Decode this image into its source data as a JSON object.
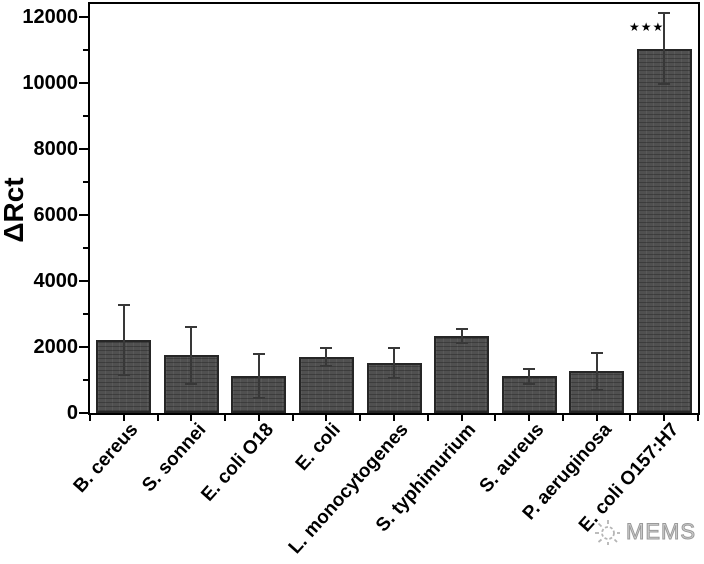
{
  "chart_data": {
    "type": "bar",
    "title": "",
    "xlabel": "",
    "ylabel": "ΔRct",
    "ylim": [
      0,
      12000
    ],
    "yticks_major": [
      0,
      2000,
      4000,
      6000,
      8000,
      10000,
      12000
    ],
    "yticks_minor": [
      1000,
      3000,
      5000,
      7000,
      9000,
      11000
    ],
    "grid": false,
    "legend": null,
    "bar_face_color": "#505050",
    "bar_edge_color": "#262626",
    "error_bar_color": "#383838",
    "categories": [
      "B. cereus",
      "S. sonnei",
      "E. coli O18",
      "E. coli",
      "L. monocytogenes",
      "S. typhimurium",
      "S. aureus",
      "P. aeruginosa",
      "E. coli O157:H7"
    ],
    "values": [
      2200,
      1750,
      1120,
      1700,
      1510,
      2330,
      1110,
      1260,
      11050
    ],
    "errors": [
      1060,
      870,
      660,
      280,
      450,
      215,
      230,
      550,
      1080
    ],
    "significance": {
      "category_index": 8,
      "marker": "★★★"
    }
  },
  "watermark": {
    "label": "MEMS",
    "icon": "gear-icon",
    "color": "#b0b0b0"
  }
}
